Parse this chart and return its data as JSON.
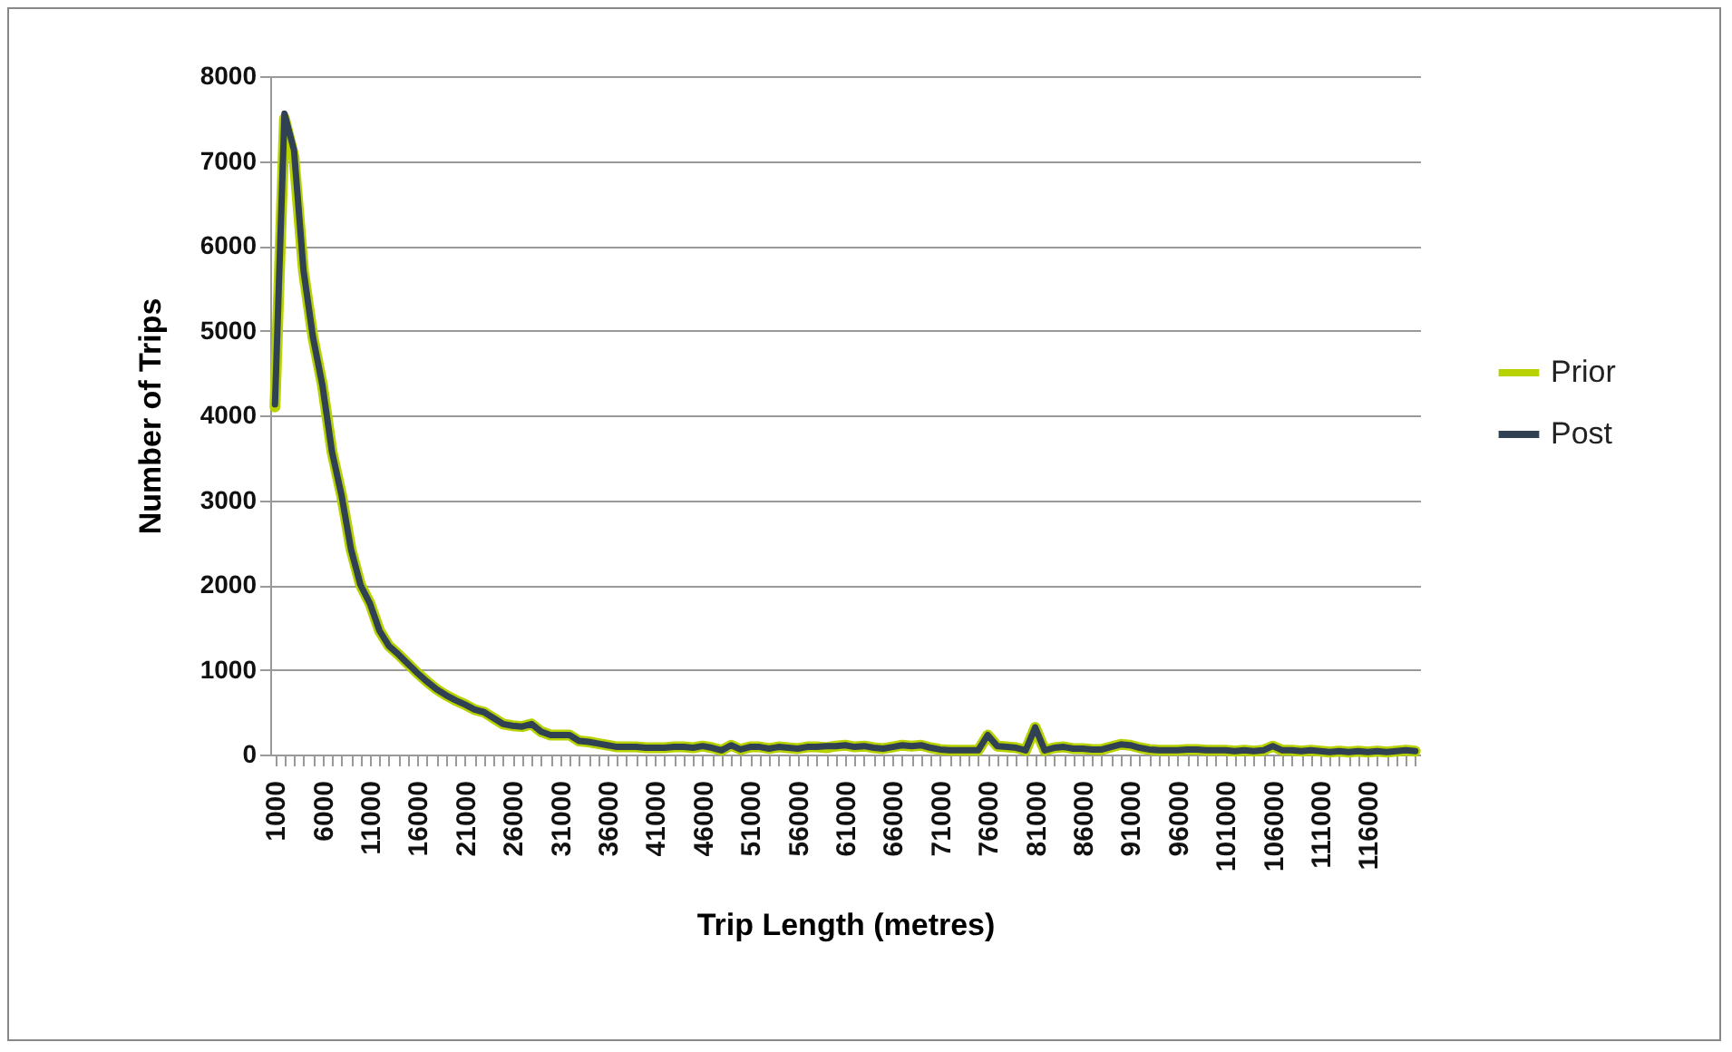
{
  "chart_data": {
    "type": "line",
    "xlabel": "Trip Length (metres)",
    "ylabel": "Number of Trips",
    "categories": [
      "1000",
      null,
      null,
      null,
      null,
      "6000",
      null,
      null,
      null,
      null,
      "11000",
      null,
      null,
      null,
      null,
      "16000",
      null,
      null,
      null,
      null,
      "21000",
      null,
      null,
      null,
      null,
      "26000",
      null,
      null,
      null,
      null,
      "31000",
      null,
      null,
      null,
      null,
      "36000",
      null,
      null,
      null,
      null,
      "41000",
      null,
      null,
      null,
      null,
      "46000",
      null,
      null,
      null,
      null,
      "51000",
      null,
      null,
      null,
      null,
      "56000",
      null,
      null,
      null,
      null,
      "61000",
      null,
      null,
      null,
      null,
      "66000",
      null,
      null,
      null,
      null,
      "71000",
      null,
      null,
      null,
      null,
      "76000",
      null,
      null,
      null,
      null,
      "81000",
      null,
      null,
      null,
      null,
      "86000",
      null,
      null,
      null,
      null,
      "91000",
      null,
      null,
      null,
      null,
      "96000",
      null,
      null,
      null,
      null,
      "101000",
      null,
      null,
      null,
      null,
      "106000",
      null,
      null,
      null,
      null,
      "111000",
      null,
      null,
      null,
      null,
      "116000",
      null,
      null,
      null,
      null,
      null
    ],
    "series": [
      {
        "name": "Prior",
        "color": "#b8d200",
        "values": [
          4100,
          7500,
          7050,
          5700,
          4920,
          4350,
          3570,
          3060,
          2420,
          2000,
          1780,
          1460,
          1280,
          1180,
          1070,
          960,
          860,
          770,
          700,
          640,
          590,
          530,
          500,
          430,
          360,
          340,
          330,
          360,
          270,
          230,
          230,
          230,
          160,
          150,
          130,
          110,
          90,
          90,
          90,
          80,
          80,
          80,
          90,
          90,
          80,
          100,
          80,
          50,
          110,
          60,
          90,
          90,
          70,
          90,
          80,
          70,
          90,
          90,
          80,
          100,
          110,
          90,
          100,
          80,
          70,
          90,
          110,
          100,
          110,
          80,
          60,
          50,
          50,
          50,
          50,
          230,
          100,
          90,
          80,
          50,
          320,
          50,
          80,
          90,
          70,
          70,
          60,
          60,
          90,
          120,
          110,
          80,
          60,
          50,
          50,
          50,
          60,
          60,
          50,
          50,
          50,
          40,
          50,
          40,
          50,
          100,
          50,
          50,
          40,
          50,
          40,
          30,
          40,
          30,
          40,
          30,
          40,
          30,
          40,
          50,
          40
        ]
      },
      {
        "name": "Post",
        "color": "#2f4152",
        "values": [
          4130,
          7560,
          7130,
          5710,
          4920,
          4350,
          3570,
          3060,
          2420,
          2000,
          1780,
          1460,
          1280,
          1180,
          1070,
          960,
          860,
          770,
          700,
          640,
          590,
          530,
          500,
          430,
          360,
          340,
          330,
          360,
          270,
          230,
          230,
          230,
          160,
          150,
          130,
          110,
          90,
          90,
          90,
          80,
          80,
          80,
          90,
          90,
          80,
          100,
          80,
          50,
          110,
          60,
          90,
          90,
          70,
          90,
          80,
          70,
          90,
          90,
          100,
          100,
          110,
          90,
          100,
          80,
          70,
          90,
          110,
          100,
          110,
          80,
          60,
          50,
          50,
          50,
          50,
          230,
          100,
          90,
          80,
          50,
          320,
          50,
          80,
          90,
          70,
          70,
          60,
          60,
          90,
          120,
          110,
          80,
          60,
          50,
          50,
          50,
          60,
          60,
          50,
          50,
          50,
          40,
          50,
          40,
          50,
          100,
          50,
          50,
          40,
          50,
          40,
          30,
          40,
          30,
          40,
          30,
          40,
          30,
          40,
          50,
          40
        ]
      }
    ],
    "ylim": [
      0,
      8000
    ],
    "yticks": [
      0,
      1000,
      2000,
      3000,
      4000,
      5000,
      6000,
      7000,
      8000
    ],
    "grid": "y",
    "legend": "right"
  }
}
